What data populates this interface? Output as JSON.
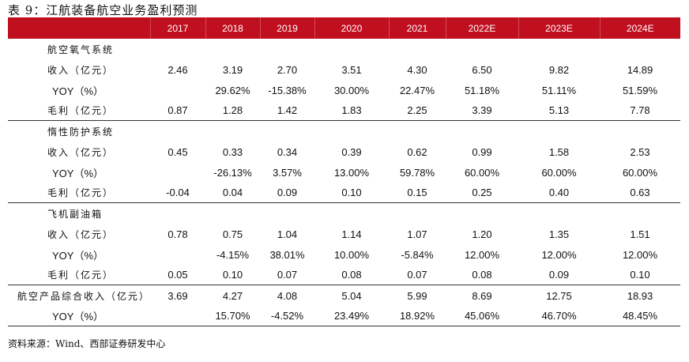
{
  "title": "表 9：江航装备航空业务盈利预测",
  "columns": [
    "",
    "2017",
    "2018",
    "2019",
    "2020",
    "2021",
    "2022E",
    "2023E",
    "2024E"
  ],
  "sections": [
    {
      "name": "航空氧气系统",
      "rows": [
        {
          "label": "收入（亿元）",
          "values": [
            "2.46",
            "3.19",
            "2.70",
            "3.51",
            "4.30",
            "6.50",
            "9.82",
            "14.89"
          ]
        },
        {
          "label": "YOY（%）",
          "values": [
            "",
            "29.62%",
            "-15.38%",
            "30.00%",
            "22.47%",
            "51.18%",
            "51.11%",
            "51.59%"
          ]
        },
        {
          "label": "毛利（亿元）",
          "values": [
            "0.87",
            "1.28",
            "1.42",
            "1.83",
            "2.25",
            "3.39",
            "5.13",
            "7.78"
          ]
        }
      ]
    },
    {
      "name": "惰性防护系统",
      "rows": [
        {
          "label": "收入（亿元）",
          "values": [
            "0.45",
            "0.33",
            "0.34",
            "0.39",
            "0.62",
            "0.99",
            "1.58",
            "2.53"
          ]
        },
        {
          "label": "YOY（%）",
          "values": [
            "",
            "-26.13%",
            "3.57%",
            "13.00%",
            "59.78%",
            "60.00%",
            "60.00%",
            "60.00%"
          ]
        },
        {
          "label": "毛利（亿元）",
          "values": [
            "-0.04",
            "0.04",
            "0.09",
            "0.10",
            "0.15",
            "0.25",
            "0.40",
            "0.63"
          ]
        }
      ]
    },
    {
      "name": "飞机副油箱",
      "rows": [
        {
          "label": "收入（亿元）",
          "values": [
            "0.78",
            "0.75",
            "1.04",
            "1.14",
            "1.07",
            "1.20",
            "1.35",
            "1.51"
          ]
        },
        {
          "label": "YOY（%）",
          "values": [
            "",
            "-4.15%",
            "38.01%",
            "10.00%",
            "-5.84%",
            "12.00%",
            "12.00%",
            "12.00%"
          ]
        },
        {
          "label": "毛利（亿元）",
          "values": [
            "0.05",
            "0.10",
            "0.07",
            "0.08",
            "0.07",
            "0.08",
            "0.09",
            "0.10"
          ]
        }
      ]
    }
  ],
  "total": [
    {
      "label": "航空产品综合收入（亿元）",
      "values": [
        "3.69",
        "4.27",
        "4.08",
        "5.04",
        "5.99",
        "8.69",
        "12.75",
        "18.93"
      ]
    },
    {
      "label": "YOY（%）",
      "values": [
        "",
        "15.70%",
        "-4.52%",
        "23.49%",
        "18.92%",
        "45.06%",
        "46.70%",
        "48.45%"
      ]
    }
  ],
  "source": "资料来源：Wind、西部证券研发中心",
  "colors": {
    "header_bg": "#c00f1f"
  }
}
